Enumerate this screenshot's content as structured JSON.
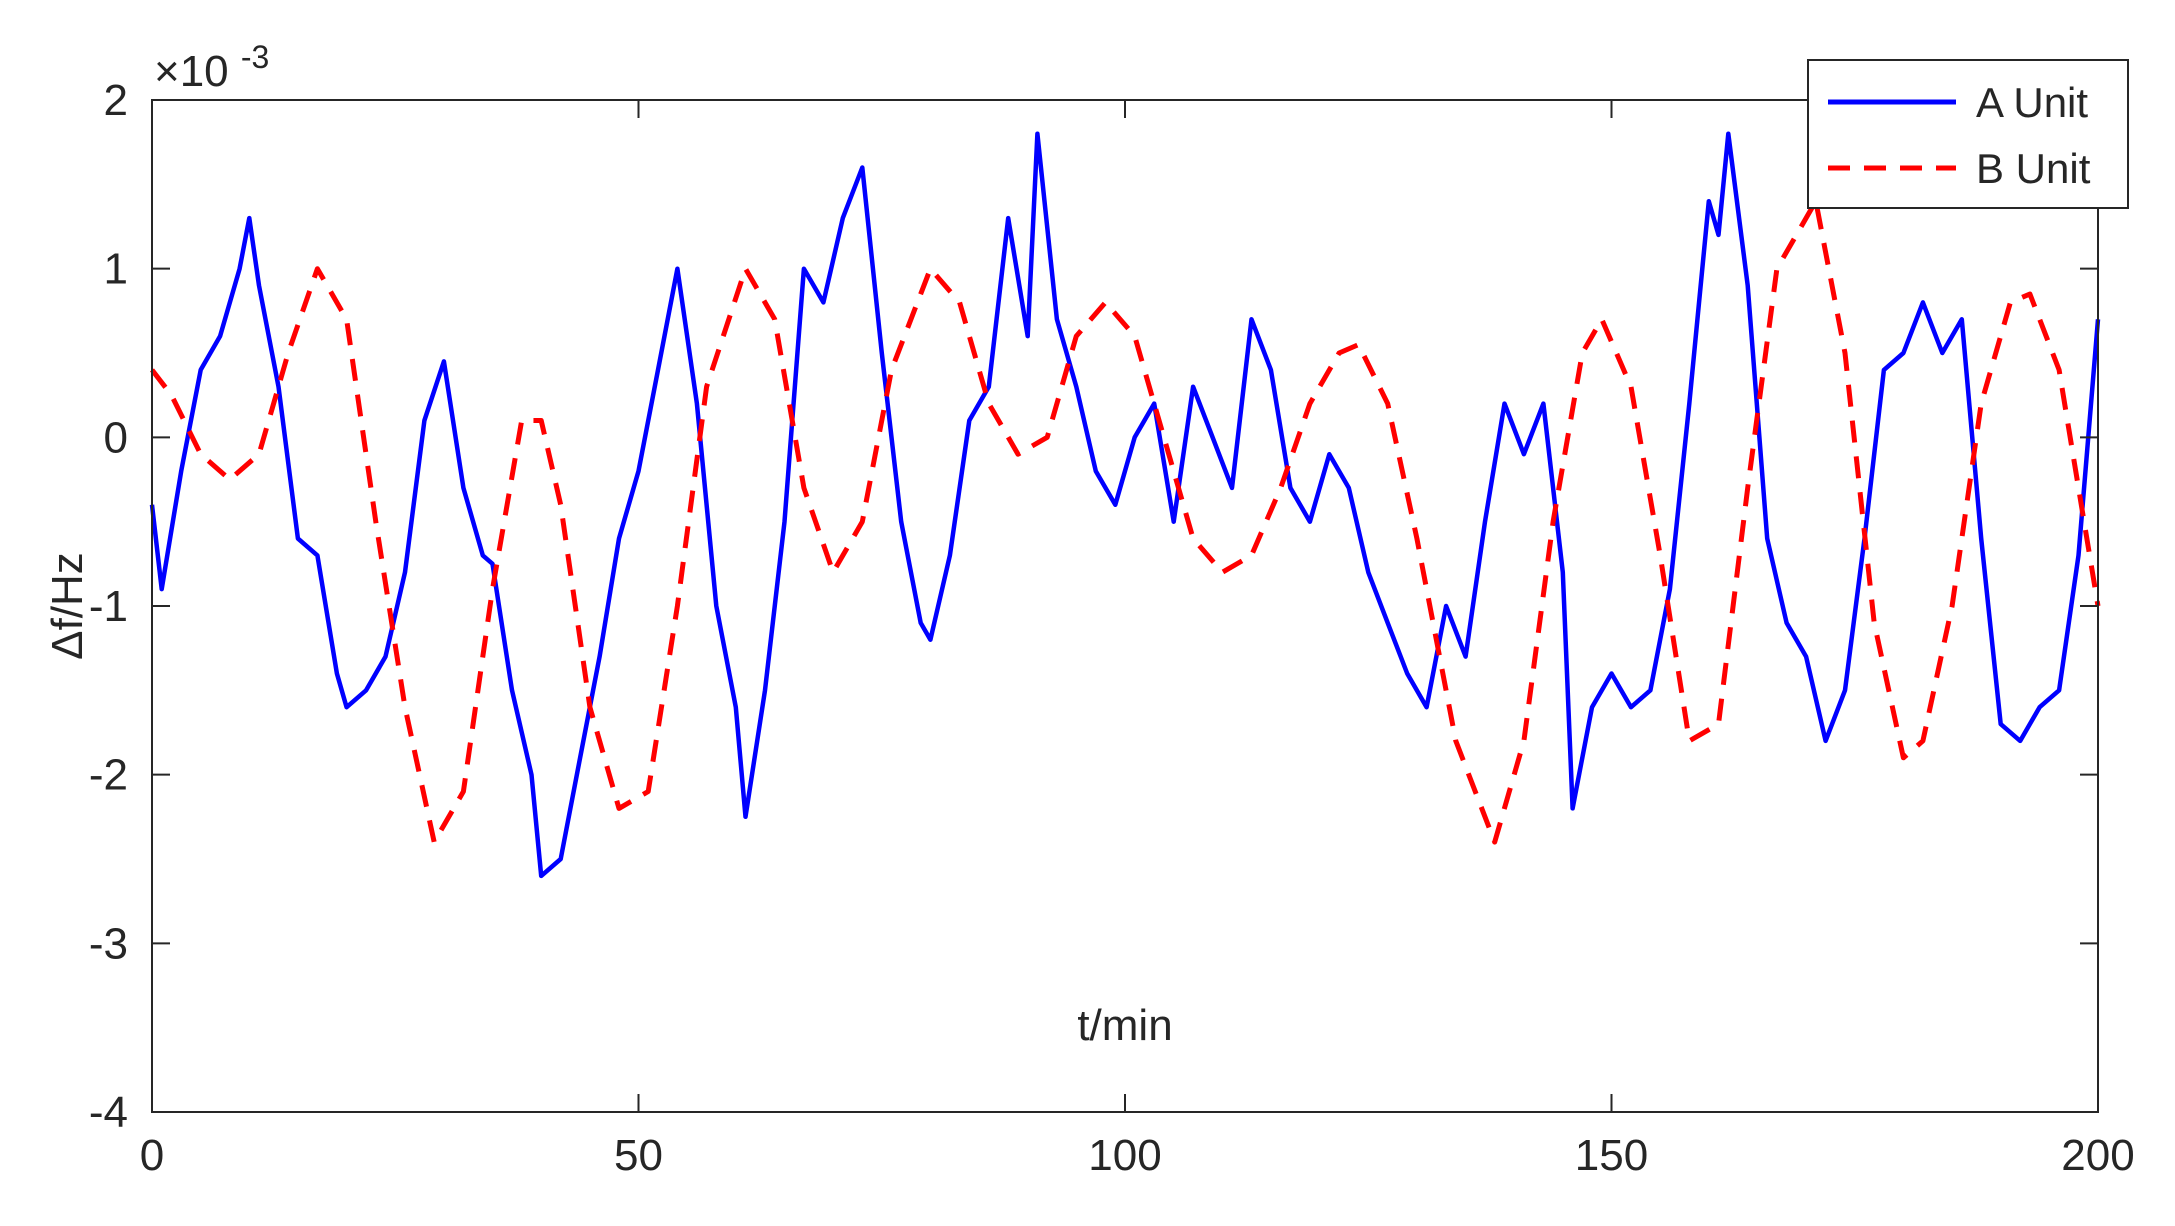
{
  "chart_data": {
    "type": "line",
    "title": "",
    "xlabel": "t/min",
    "ylabel": "Δf/Hz",
    "xlim": [
      0,
      200
    ],
    "ylim": [
      -4,
      2
    ],
    "y_exponent_label": "×10",
    "y_exponent_power": "-3",
    "x_ticks": [
      0,
      50,
      100,
      150,
      200
    ],
    "x_tick_labels": [
      "0",
      "50",
      "100",
      "150",
      "200"
    ],
    "y_ticks": [
      -4,
      -3,
      -2,
      -1,
      0,
      1,
      2
    ],
    "y_tick_labels": [
      "-4",
      "-3",
      "-2",
      "-1",
      "0",
      "1",
      "2"
    ],
    "grid": false,
    "legend": "top-right",
    "series": [
      {
        "name": "A Unit",
        "color": "#0000ff",
        "style": "solid",
        "x": [
          0,
          1,
          3,
          5,
          7,
          9,
          10,
          11,
          13,
          15,
          17,
          19,
          20,
          22,
          24,
          26,
          28,
          30,
          32,
          34,
          35,
          37,
          39,
          40,
          42,
          44,
          46,
          48,
          50,
          52,
          54,
          56,
          58,
          60,
          61,
          63,
          65,
          67,
          69,
          71,
          73,
          75,
          77,
          79,
          80,
          82,
          84,
          86,
          88,
          90,
          91,
          93,
          95,
          97,
          99,
          101,
          103,
          105,
          107,
          109,
          111,
          113,
          115,
          117,
          119,
          121,
          123,
          125,
          127,
          129,
          131,
          133,
          135,
          137,
          139,
          141,
          143,
          145,
          146,
          148,
          150,
          152,
          154,
          156,
          158,
          160,
          161,
          162,
          164,
          166,
          168,
          170,
          172,
          174,
          176,
          178,
          180,
          182,
          184,
          186,
          188,
          190,
          192,
          194,
          196,
          198,
          200
        ],
        "values": [
          -0.4,
          -0.9,
          -0.2,
          0.4,
          0.6,
          1.0,
          1.3,
          0.9,
          0.3,
          -0.6,
          -0.7,
          -1.4,
          -1.6,
          -1.5,
          -1.3,
          -0.8,
          0.1,
          0.45,
          -0.3,
          -0.7,
          -0.75,
          -1.5,
          -2.0,
          -2.6,
          -2.5,
          -1.9,
          -1.3,
          -0.6,
          -0.2,
          0.4,
          1.0,
          0.2,
          -1.0,
          -1.6,
          -2.25,
          -1.5,
          -0.5,
          1.0,
          0.8,
          1.3,
          1.6,
          0.5,
          -0.5,
          -1.1,
          -1.2,
          -0.7,
          0.1,
          0.3,
          1.3,
          0.6,
          1.8,
          0.7,
          0.3,
          -0.2,
          -0.4,
          0.0,
          0.2,
          -0.5,
          0.3,
          0.0,
          -0.3,
          0.7,
          0.4,
          -0.3,
          -0.5,
          -0.1,
          -0.3,
          -0.8,
          -1.1,
          -1.4,
          -1.6,
          -1.0,
          -1.3,
          -0.5,
          0.2,
          -0.1,
          0.2,
          -0.8,
          -2.2,
          -1.6,
          -1.4,
          -1.6,
          -1.5,
          -0.9,
          0.2,
          1.4,
          1.2,
          1.8,
          0.9,
          -0.6,
          -1.1,
          -1.3,
          -1.8,
          -1.5,
          -0.6,
          0.4,
          0.5,
          0.8,
          0.5,
          0.7,
          -0.6,
          -1.7,
          -1.8,
          -1.6,
          -1.5,
          -0.7,
          0.7
        ]
      },
      {
        "name": "B Unit",
        "color": "#ff0000",
        "style": "dashed",
        "x": [
          0,
          2,
          5,
          8,
          11,
          14,
          17,
          20,
          23,
          26,
          29,
          32,
          35,
          38,
          40,
          42,
          45,
          48,
          51,
          54,
          57,
          61,
          64,
          67,
          70,
          73,
          76,
          80,
          83,
          86,
          89,
          92,
          95,
          98,
          101,
          104,
          107,
          110,
          113,
          116,
          119,
          122,
          124,
          127,
          130,
          134,
          138,
          141,
          144,
          147,
          149,
          152,
          155,
          158,
          161,
          164,
          167,
          171,
          174,
          177,
          180,
          182,
          185,
          188,
          191,
          193,
          196,
          198,
          200
        ],
        "values": [
          0.4,
          0.25,
          -0.1,
          -0.25,
          -0.1,
          0.5,
          1.0,
          0.7,
          -0.5,
          -1.6,
          -2.4,
          -2.1,
          -0.9,
          0.1,
          0.1,
          -0.4,
          -1.6,
          -2.2,
          -2.1,
          -1.0,
          0.3,
          1.0,
          0.7,
          -0.3,
          -0.8,
          -0.5,
          0.4,
          1.0,
          0.8,
          0.2,
          -0.1,
          0.0,
          0.6,
          0.8,
          0.6,
          0.0,
          -0.6,
          -0.8,
          -0.7,
          -0.3,
          0.2,
          0.5,
          0.55,
          0.2,
          -0.6,
          -1.8,
          -2.4,
          -1.8,
          -0.5,
          0.5,
          0.7,
          0.3,
          -0.7,
          -1.8,
          -1.7,
          -0.3,
          1.0,
          1.4,
          0.5,
          -1.1,
          -1.9,
          -1.8,
          -1.0,
          0.2,
          0.8,
          0.85,
          0.4,
          -0.3,
          -1.0
        ]
      }
    ]
  }
}
